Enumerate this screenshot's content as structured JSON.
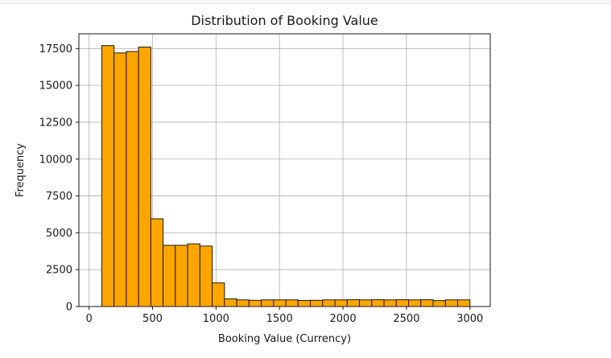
{
  "chart_data": {
    "type": "bar",
    "histogram": true,
    "title": "Distribution of Booking Value",
    "xlabel": "Booking Value (Currency)",
    "ylabel": "Frequency",
    "xlim": [
      -80,
      3160
    ],
    "ylim": [
      0,
      18500
    ],
    "x_ticks": [
      0,
      500,
      1000,
      1500,
      2000,
      2500,
      3000
    ],
    "y_ticks": [
      0,
      2500,
      5000,
      7500,
      10000,
      12500,
      15000,
      17500
    ],
    "grid": true,
    "colors": {
      "bar_fill": "#ffa500",
      "bar_edge": "#1a1a1a",
      "grid": "#b0b0b0"
    },
    "bin_edges": [
      100,
      196.7,
      293.3,
      390,
      486.7,
      583.3,
      680,
      776.7,
      873.3,
      970,
      1066.7,
      1163.3,
      1260,
      1356.7,
      1453.3,
      1550,
      1646.7,
      1743.3,
      1840,
      1936.7,
      2033.3,
      2130,
      2226.7,
      2323.3,
      2420,
      2516.7,
      2613.3,
      2710,
      2806.7,
      2903.3,
      3000
    ],
    "values": [
      17700,
      17200,
      17300,
      17600,
      5950,
      4150,
      4150,
      4250,
      4100,
      1600,
      520,
      450,
      420,
      450,
      450,
      450,
      410,
      420,
      450,
      450,
      460,
      450,
      460,
      450,
      460,
      450,
      460,
      400,
      450,
      450
    ]
  }
}
